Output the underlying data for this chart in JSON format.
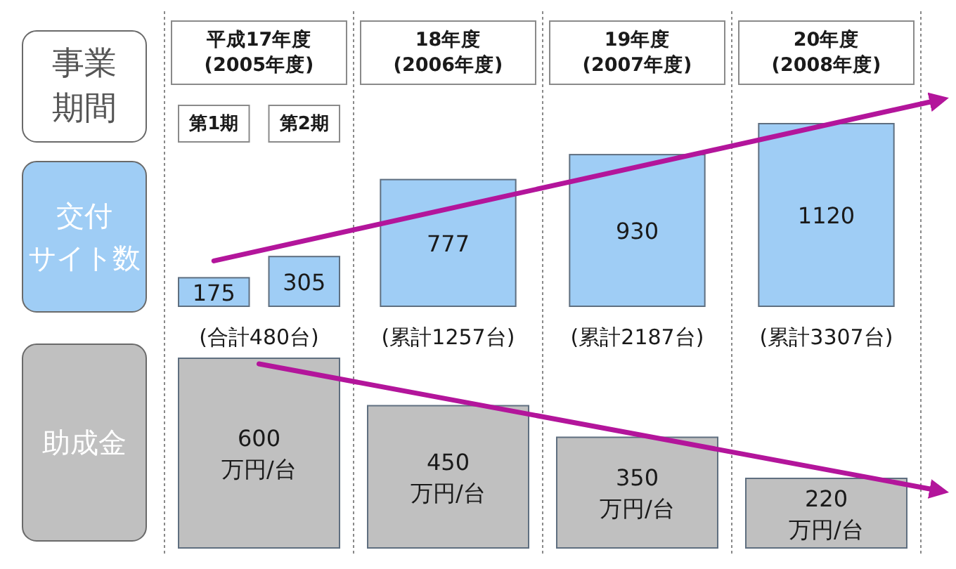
{
  "chart_data": [
    {
      "type": "bar",
      "xlabel": "事業期間",
      "categories": [
        "平成17年度\n(2005年度)",
        "18年度\n(2006年度)",
        "19年度\n(2007年度)",
        "20年度\n(2008年度)"
      ],
      "series": [
        {
          "name": "交付サイト数",
          "color": "#9fcdf5",
          "x": [
            "平成17年度\n(2005年度)",
            "平成17年度\n(2005年度)",
            "18年度\n(2006年度)",
            "19年度\n(2007年度)",
            "20年度\n(2008年度)"
          ],
          "values": [
            175,
            305,
            777,
            930,
            1120
          ]
        }
      ],
      "data_labels": true,
      "totals": [
        "(合計480台)",
        "(累計1257台)",
        "(累計2187台)",
        "(累計3307台)"
      ],
      "annotations": [
        "第1期",
        "第2期"
      ],
      "grid": "x"
    },
    {
      "type": "bar",
      "categories": [
        "平成17年度\n(2005年度)",
        "18年度\n(2006年度)",
        "19年度\n(2007年度)",
        "20年度\n(2008年度)"
      ],
      "tick_labels": false,
      "series": [
        {
          "name": "助成金",
          "color": "#c0c0c0",
          "x": [
            "平成17年度\n(2005年度)",
            "18年度\n(2006年度)",
            "19年度\n(2007年度)",
            "20年度\n(2008年度)"
          ],
          "values": [
            600,
            450,
            350,
            220
          ],
          "value_labels": [
            "600\n万円/台",
            "450\n万円/台",
            "350\n万円/台",
            "220\n万円/台"
          ]
        }
      ],
      "grid": "x"
    }
  ]
}
